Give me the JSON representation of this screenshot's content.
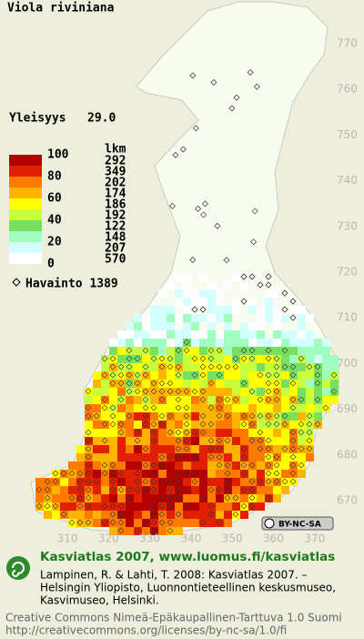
{
  "title": "Viola riviniana",
  "frequency": {
    "label": "Yleisyys",
    "value": "29.0"
  },
  "legend": {
    "scale_labels": [
      "100",
      "80",
      "60",
      "40",
      "20",
      "0"
    ],
    "count_header": "lkm",
    "counts": [
      "292",
      "349",
      "202",
      "174",
      "186",
      "192",
      "122",
      "148",
      "207",
      "570"
    ],
    "colors": [
      "#b40000",
      "#e02000",
      "#ff7a00",
      "#ffb400",
      "#ffff00",
      "#c8ff3c",
      "#78e060",
      "#a0ffc0",
      "#d4ffff",
      "#ffffff"
    ],
    "observation": "Havainto 1389"
  },
  "axes": {
    "y_labels": [
      "770",
      "760",
      "750",
      "740",
      "730",
      "720",
      "710",
      "700",
      "690",
      "680",
      "670"
    ],
    "x_labels": [
      "310",
      "320",
      "330",
      "340",
      "350",
      "360",
      "370"
    ]
  },
  "cc_badge": "BY-NC-SA",
  "footer": {
    "heading": "Kasviatlas 2007, www.luomus.fi/kasviatlas",
    "citation": [
      "Lampinen, R. & Lahti, T. 2008: Kasviatlas 2007. –",
      "Helsingin Yliopisto, Luonnontieteellinen keskusmuseo,",
      "Kasvimuseo, Helsinki."
    ],
    "license": [
      "Creative Commons Nimeä-Epäkaupallinen-Tarttuva 1.0 Suomi",
      "http://creativecommons.org/licenses/by-nc-sa/1.0/fi"
    ]
  }
}
